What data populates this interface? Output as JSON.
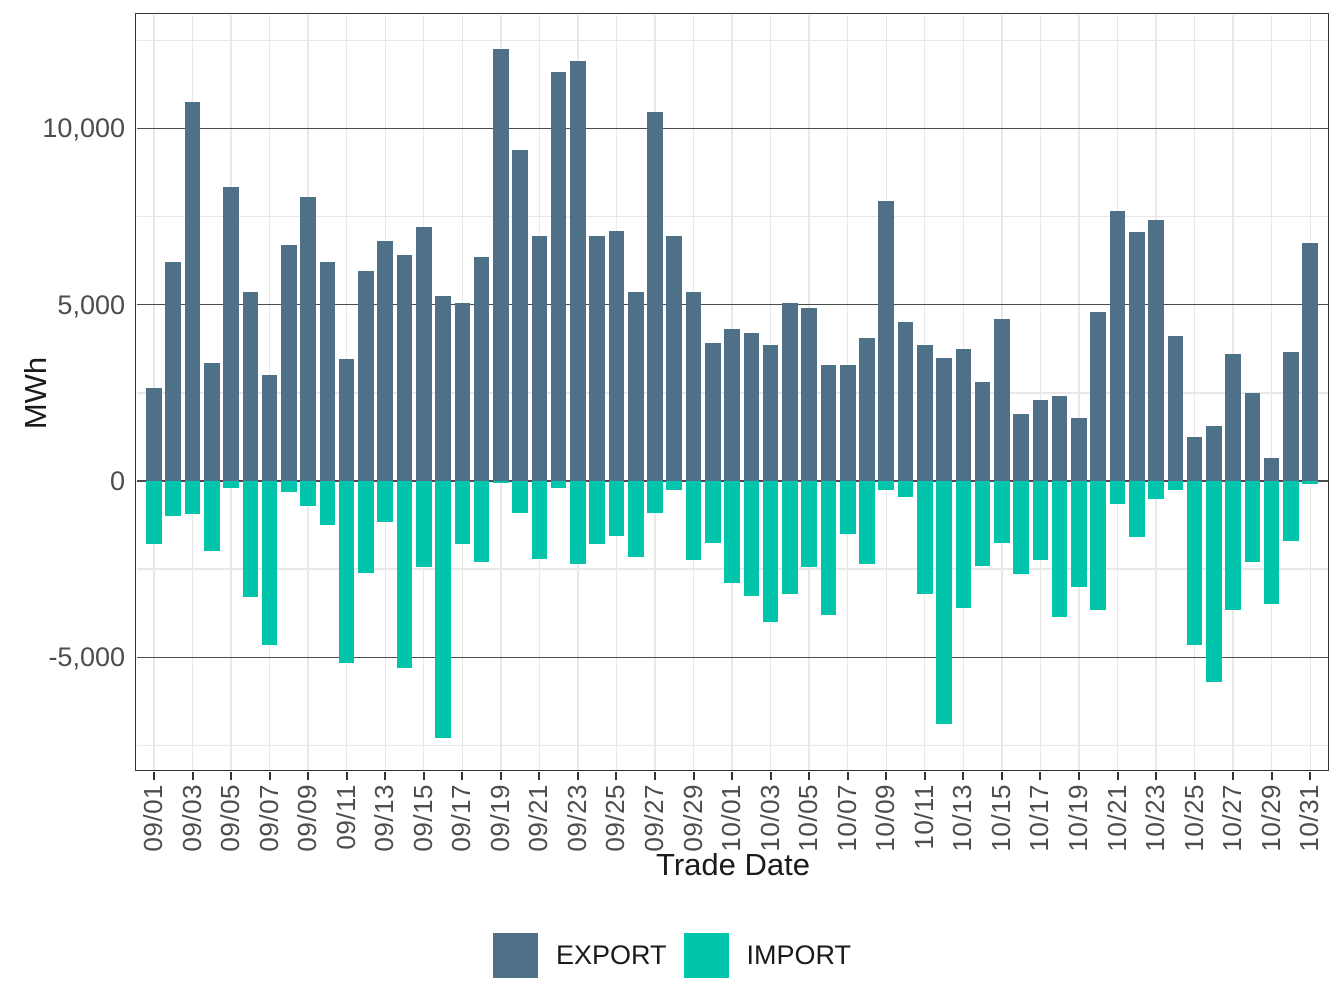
{
  "chart_data": {
    "type": "bar",
    "title": "",
    "xlabel": "Trade Date",
    "ylabel": "MWh",
    "legend_position": "bottom",
    "grid": "on",
    "ylim": [
      -8225,
      13215
    ],
    "y_major_ticks": [
      {
        "value": 10000,
        "label": "10,000"
      },
      {
        "value": 5000,
        "label": "5,000"
      },
      {
        "value": 0,
        "label": "0"
      },
      {
        "value": -5000,
        "label": "-5,000"
      }
    ],
    "y_minor_ticks": [
      12500,
      7500,
      2500,
      -2500,
      -7500
    ],
    "x_tick_every": 2,
    "categories": [
      "09/01",
      "09/02",
      "09/03",
      "09/04",
      "09/05",
      "09/06",
      "09/07",
      "09/08",
      "09/09",
      "09/10",
      "09/11",
      "09/12",
      "09/13",
      "09/14",
      "09/15",
      "09/16",
      "09/17",
      "09/18",
      "09/19",
      "09/20",
      "09/21",
      "09/22",
      "09/23",
      "09/24",
      "09/25",
      "09/26",
      "09/27",
      "09/28",
      "09/29",
      "09/30",
      "10/01",
      "10/02",
      "10/03",
      "10/04",
      "10/05",
      "10/06",
      "10/07",
      "10/08",
      "10/09",
      "10/10",
      "10/11",
      "10/12",
      "10/13",
      "10/14",
      "10/15",
      "10/16",
      "10/17",
      "10/18",
      "10/19",
      "10/20",
      "10/21",
      "10/22",
      "10/23",
      "10/24",
      "10/25",
      "10/26",
      "10/27",
      "10/28",
      "10/29",
      "10/30",
      "10/31"
    ],
    "series": [
      {
        "name": "EXPORT",
        "color": "#4f7188",
        "values": [
          2650,
          6200,
          10750,
          3350,
          8350,
          5350,
          3000,
          6700,
          8050,
          6200,
          3450,
          5950,
          6800,
          6400,
          7200,
          5250,
          5050,
          6350,
          12250,
          9400,
          6950,
          11600,
          11900,
          6950,
          7100,
          5350,
          10450,
          6950,
          5350,
          3900,
          4300,
          4200,
          3850,
          5050,
          4900,
          3300,
          3300,
          4050,
          7950,
          4500,
          3850,
          3500,
          3750,
          2800,
          4600,
          1900,
          2300,
          2400,
          1800,
          4800,
          7650,
          7050,
          7400,
          4100,
          1250,
          1550,
          3600,
          2500,
          650,
          3650,
          6750
        ]
      },
      {
        "name": "IMPORT",
        "color": "#00c5aa",
        "values": [
          -1800,
          -1000,
          -950,
          -2000,
          -200,
          -3300,
          -4650,
          -300,
          -700,
          -1250,
          -5150,
          -2600,
          -1150,
          -5300,
          -2450,
          -7300,
          -1800,
          -2300,
          -50,
          -900,
          -2200,
          -200,
          -2350,
          -1800,
          -1550,
          -2150,
          -900,
          -250,
          -2250,
          -1750,
          -2900,
          -3250,
          -4000,
          -3200,
          -2450,
          -3800,
          -1500,
          -2350,
          -250,
          -450,
          -3200,
          -6900,
          -3600,
          -2400,
          -1750,
          -2650,
          -2250,
          -3850,
          -3000,
          -3650,
          -650,
          -1600,
          -500,
          -250,
          -4650,
          -5700,
          -3650,
          -2300,
          -3500,
          -1700,
          -100
        ]
      }
    ]
  },
  "axes": {
    "x_title": "Trade Date",
    "y_title": "MWh"
  },
  "legend": {
    "export_label": "EXPORT",
    "import_label": "IMPORT"
  },
  "colors": {
    "export": "#4f7188",
    "import": "#00c5aa",
    "grid_major": "#4b4b4b",
    "grid_minor": "#e8e8e8",
    "panel_border": "#333333",
    "tick_text": "#4d4d4d"
  }
}
